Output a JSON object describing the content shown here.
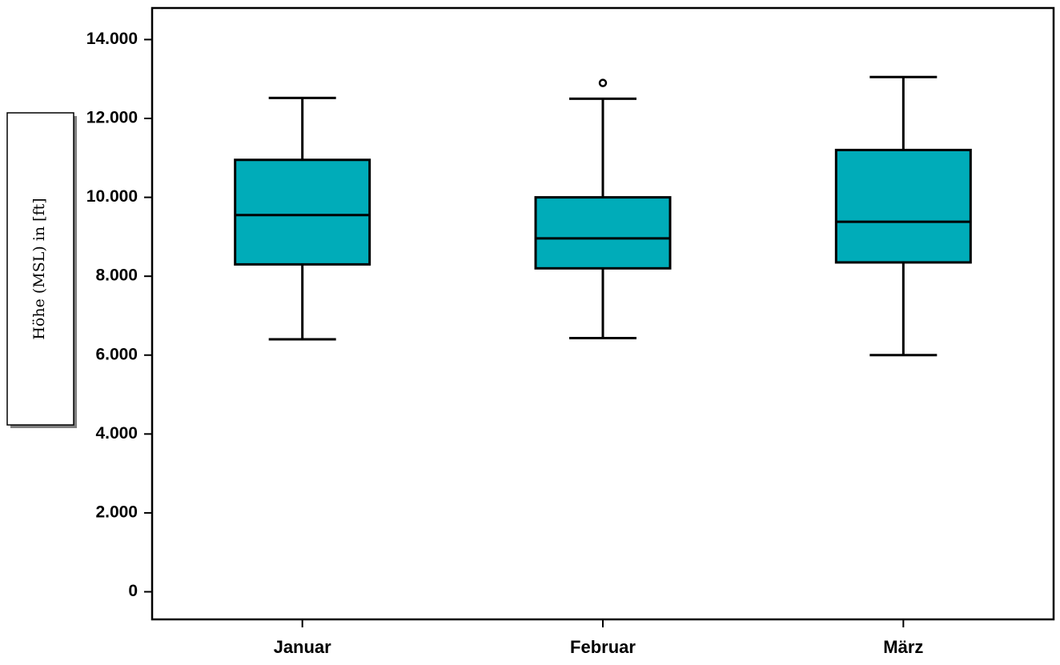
{
  "chart_data": {
    "type": "boxplot",
    "title": "",
    "xlabel": "",
    "ylabel": "Höhe (MSL) in [ft]",
    "ylim": [
      -700,
      14800
    ],
    "y_ticks": [
      0,
      2000,
      4000,
      6000,
      8000,
      10000,
      12000,
      14000
    ],
    "y_tick_labels": [
      "0",
      "2.000",
      "4.000",
      "6.000",
      "8.000",
      "10.000",
      "12.000",
      "14.000"
    ],
    "categories": [
      "Januar",
      "Februar",
      "März"
    ],
    "boxes": [
      {
        "category": "Januar",
        "whisker_low": 6400,
        "q1": 8300,
        "median": 9550,
        "q3": 10950,
        "whisker_high": 12520,
        "outliers": []
      },
      {
        "category": "Februar",
        "whisker_low": 6430,
        "q1": 8200,
        "median": 8960,
        "q3": 10000,
        "whisker_high": 12500,
        "outliers": [
          12900
        ]
      },
      {
        "category": "März",
        "whisker_low": 6000,
        "q1": 8350,
        "median": 9380,
        "q3": 11200,
        "whisker_high": 13050,
        "outliers": []
      }
    ],
    "colors": {
      "box_fill": "#00acb9",
      "stroke": "#000000",
      "background": "#ffffff",
      "label_box_shadow": "#808080"
    },
    "grid": false,
    "legend": "none"
  }
}
